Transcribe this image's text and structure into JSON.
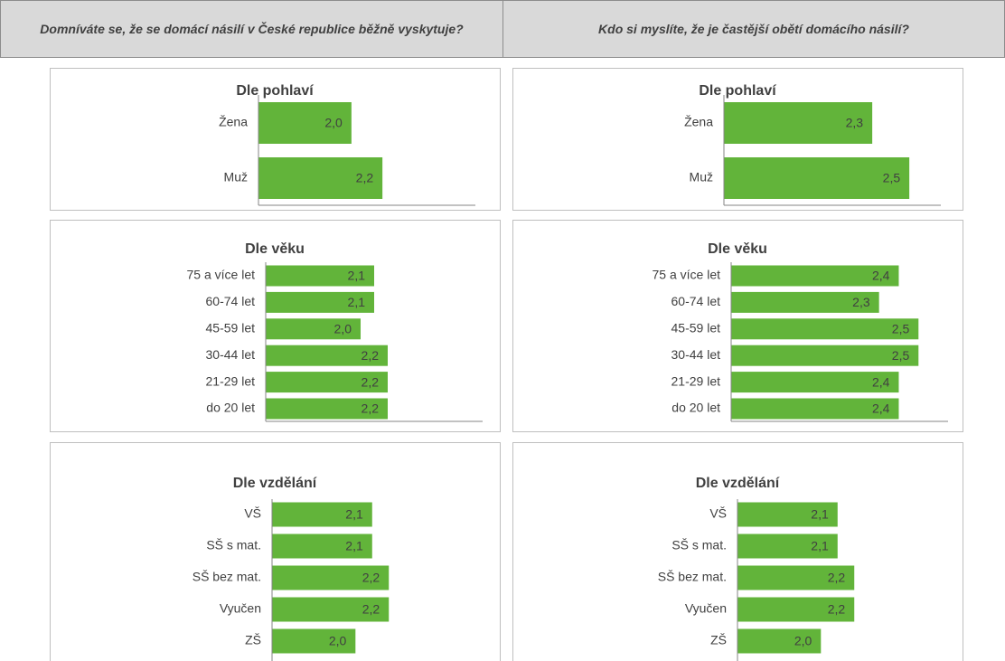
{
  "columns": [
    "Domníváte se, že se domácí násilí v České republice běžně vyskytuje?",
    "Kdo si myslíte, že je častější obětí domácího násilí?"
  ],
  "chart_data": [
    {
      "type": "barh",
      "title": "Dle pohlaví",
      "categories": [
        "Žena",
        "Muž"
      ],
      "values": [
        2.0,
        2.2
      ],
      "value_labels": [
        "2,0",
        "2,2"
      ],
      "color": "#62b43a",
      "xlim": [
        1.4,
        2.8
      ]
    },
    {
      "type": "barh",
      "title": "Dle pohlaví",
      "categories": [
        "Žena",
        "Muž"
      ],
      "values": [
        2.3,
        2.5
      ],
      "value_labels": [
        "2,3",
        "2,5"
      ],
      "color": "#62b43a",
      "xlim": [
        1.5,
        2.67
      ]
    },
    {
      "type": "barh",
      "title": "Dle věku",
      "categories": [
        "75 a více let",
        "60-74 let",
        "45-59 let",
        "30-44 let",
        "21-29 let",
        "do 20 let"
      ],
      "values": [
        2.1,
        2.1,
        2.0,
        2.2,
        2.2,
        2.2
      ],
      "value_labels": [
        "2,1",
        "2,1",
        "2,0",
        "2,2",
        "2,2",
        "2,2"
      ],
      "color": "#62b43a",
      "xlim": [
        1.3,
        2.9
      ]
    },
    {
      "type": "barh",
      "title": "Dle věku",
      "categories": [
        "75 a více let",
        "60-74 let",
        "45-59 let",
        "30-44 let",
        "21-29 let",
        "do 20 let"
      ],
      "values": [
        2.4,
        2.3,
        2.5,
        2.5,
        2.4,
        2.4
      ],
      "value_labels": [
        "2,4",
        "2,3",
        "2,5",
        "2,5",
        "2,4",
        "2,4"
      ],
      "color": "#62b43a",
      "xlim": [
        1.55,
        2.65
      ]
    },
    {
      "type": "barh",
      "title": "Dle vzdělání",
      "categories": [
        "VŠ",
        "SŠ s mat.",
        "SŠ bez mat.",
        "Vyučen",
        "ZŠ"
      ],
      "values": [
        2.1,
        2.1,
        2.2,
        2.2,
        2.0
      ],
      "value_labels": [
        "2,1",
        "2,1",
        "2,2",
        "2,2",
        "2,0"
      ],
      "color": "#62b43a",
      "xlim": [
        1.5,
        2.8
      ]
    },
    {
      "type": "barh",
      "title": "Dle vzdělání",
      "categories": [
        "VŠ",
        "SŠ s mat.",
        "SŠ bez mat.",
        "Vyučen",
        "ZŠ"
      ],
      "values": [
        2.1,
        2.1,
        2.2,
        2.2,
        2.0
      ],
      "value_labels": [
        "2,1",
        "2,1",
        "2,2",
        "2,2",
        "2,0"
      ],
      "color": "#62b43a",
      "xlim": [
        1.5,
        2.8
      ]
    }
  ]
}
